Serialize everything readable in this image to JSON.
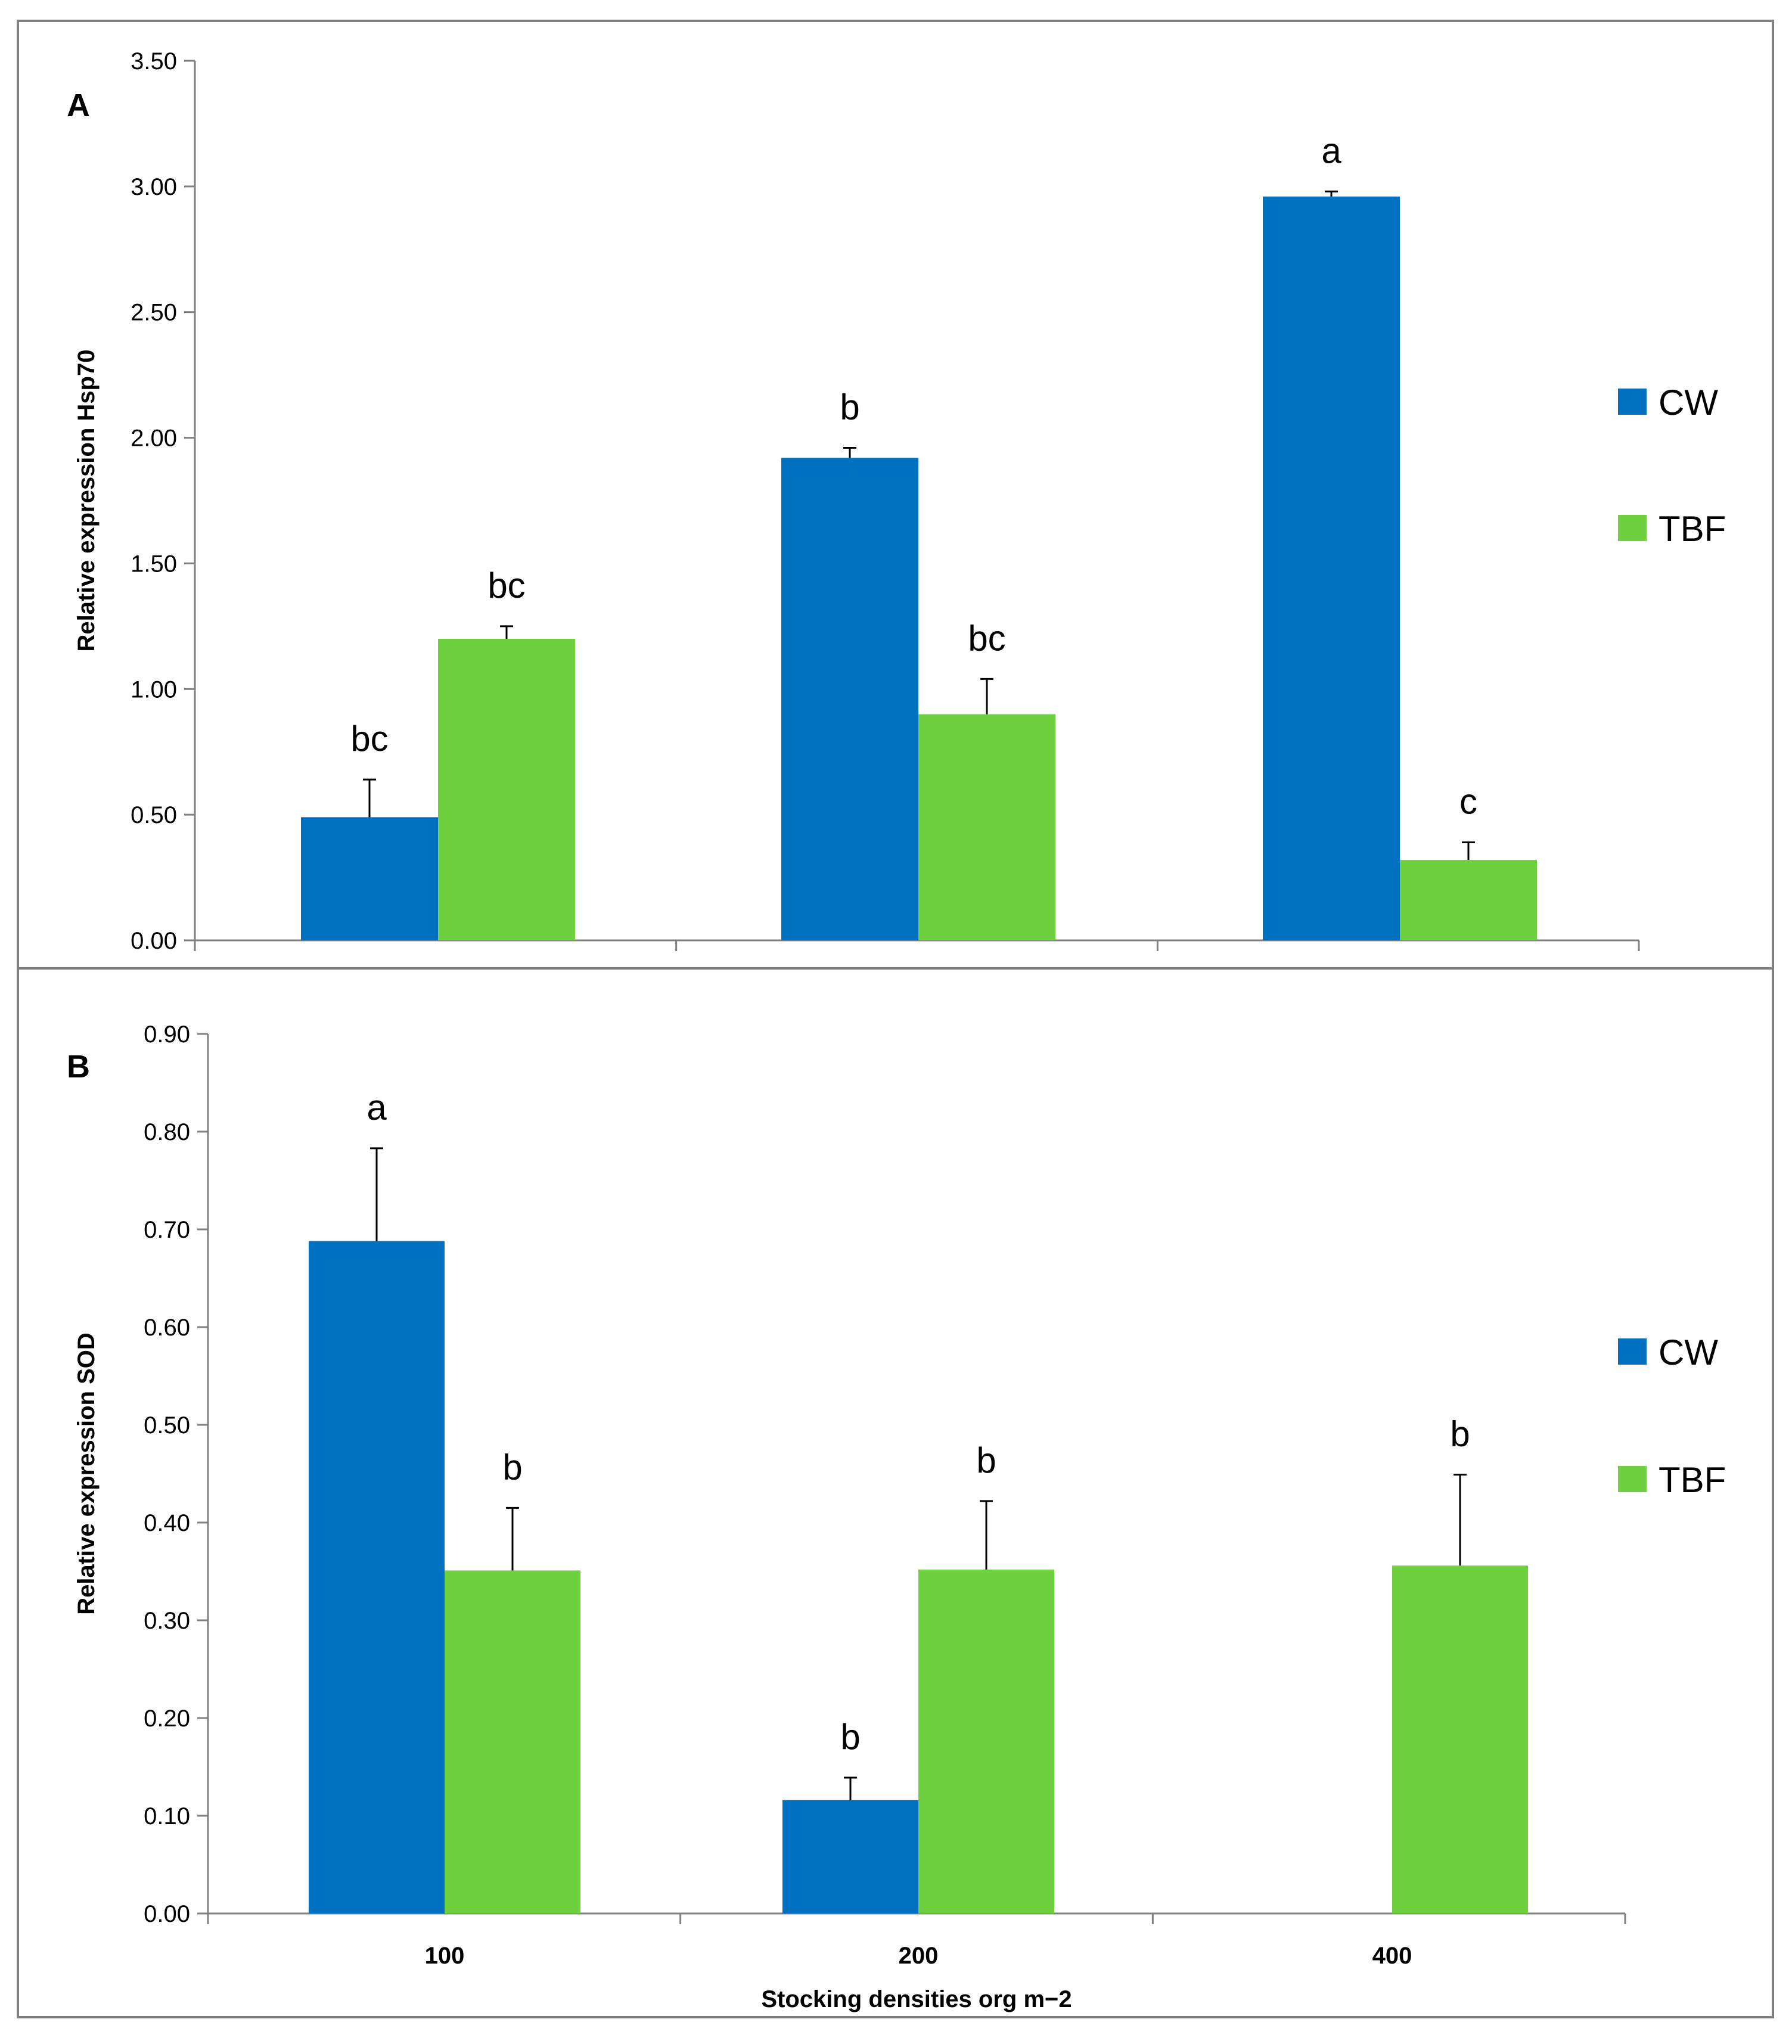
{
  "colors": {
    "CW": "#0070C0",
    "TBF": "#6FD140",
    "axis": "#808080",
    "frame": "#7F7F7F",
    "text": "#000000"
  },
  "chart_data": [
    {
      "type": "bar",
      "panel_label": "A",
      "title": "",
      "ylabel": "Relative expression Hsp70",
      "xlabel": "",
      "ylim": [
        0,
        3.5
      ],
      "yticks": [
        "0.00",
        "0.50",
        "1.00",
        "1.50",
        "2.00",
        "2.50",
        "3.00",
        "3.50"
      ],
      "categories": [
        "100",
        "200",
        "400"
      ],
      "show_category_labels": false,
      "legend_position": "right",
      "series": [
        {
          "name": "CW",
          "color_key": "CW",
          "values": [
            0.49,
            1.92,
            2.96
          ],
          "errors": [
            0.15,
            0.04,
            0.02
          ],
          "letters": [
            "bc",
            "b",
            "a"
          ]
        },
        {
          "name": "TBF",
          "color_key": "TBF",
          "values": [
            1.2,
            0.9,
            0.32
          ],
          "errors": [
            0.05,
            0.14,
            0.07
          ],
          "letters": [
            "bc",
            "bc",
            "c"
          ]
        }
      ]
    },
    {
      "type": "bar",
      "panel_label": "B",
      "title": "",
      "ylabel": "Relative expression  SOD",
      "xlabel": "Stocking densities org m−2",
      "ylim": [
        0,
        0.9
      ],
      "yticks": [
        "0.00",
        "0.10",
        "0.20",
        "0.30",
        "0.40",
        "0.50",
        "0.60",
        "0.70",
        "0.80",
        "0.90"
      ],
      "categories": [
        "100",
        "200",
        "400"
      ],
      "show_category_labels": true,
      "legend_position": "right",
      "series": [
        {
          "name": "CW",
          "color_key": "CW",
          "values": [
            0.688,
            0.116,
            0
          ],
          "errors": [
            0.095,
            0.023,
            0
          ],
          "letters": [
            "a",
            "b",
            ""
          ]
        },
        {
          "name": "TBF",
          "color_key": "TBF",
          "values": [
            0.351,
            0.352,
            0.356
          ],
          "errors": [
            0.064,
            0.07,
            0.093
          ],
          "letters": [
            "b",
            "b",
            "b"
          ]
        }
      ]
    }
  ]
}
